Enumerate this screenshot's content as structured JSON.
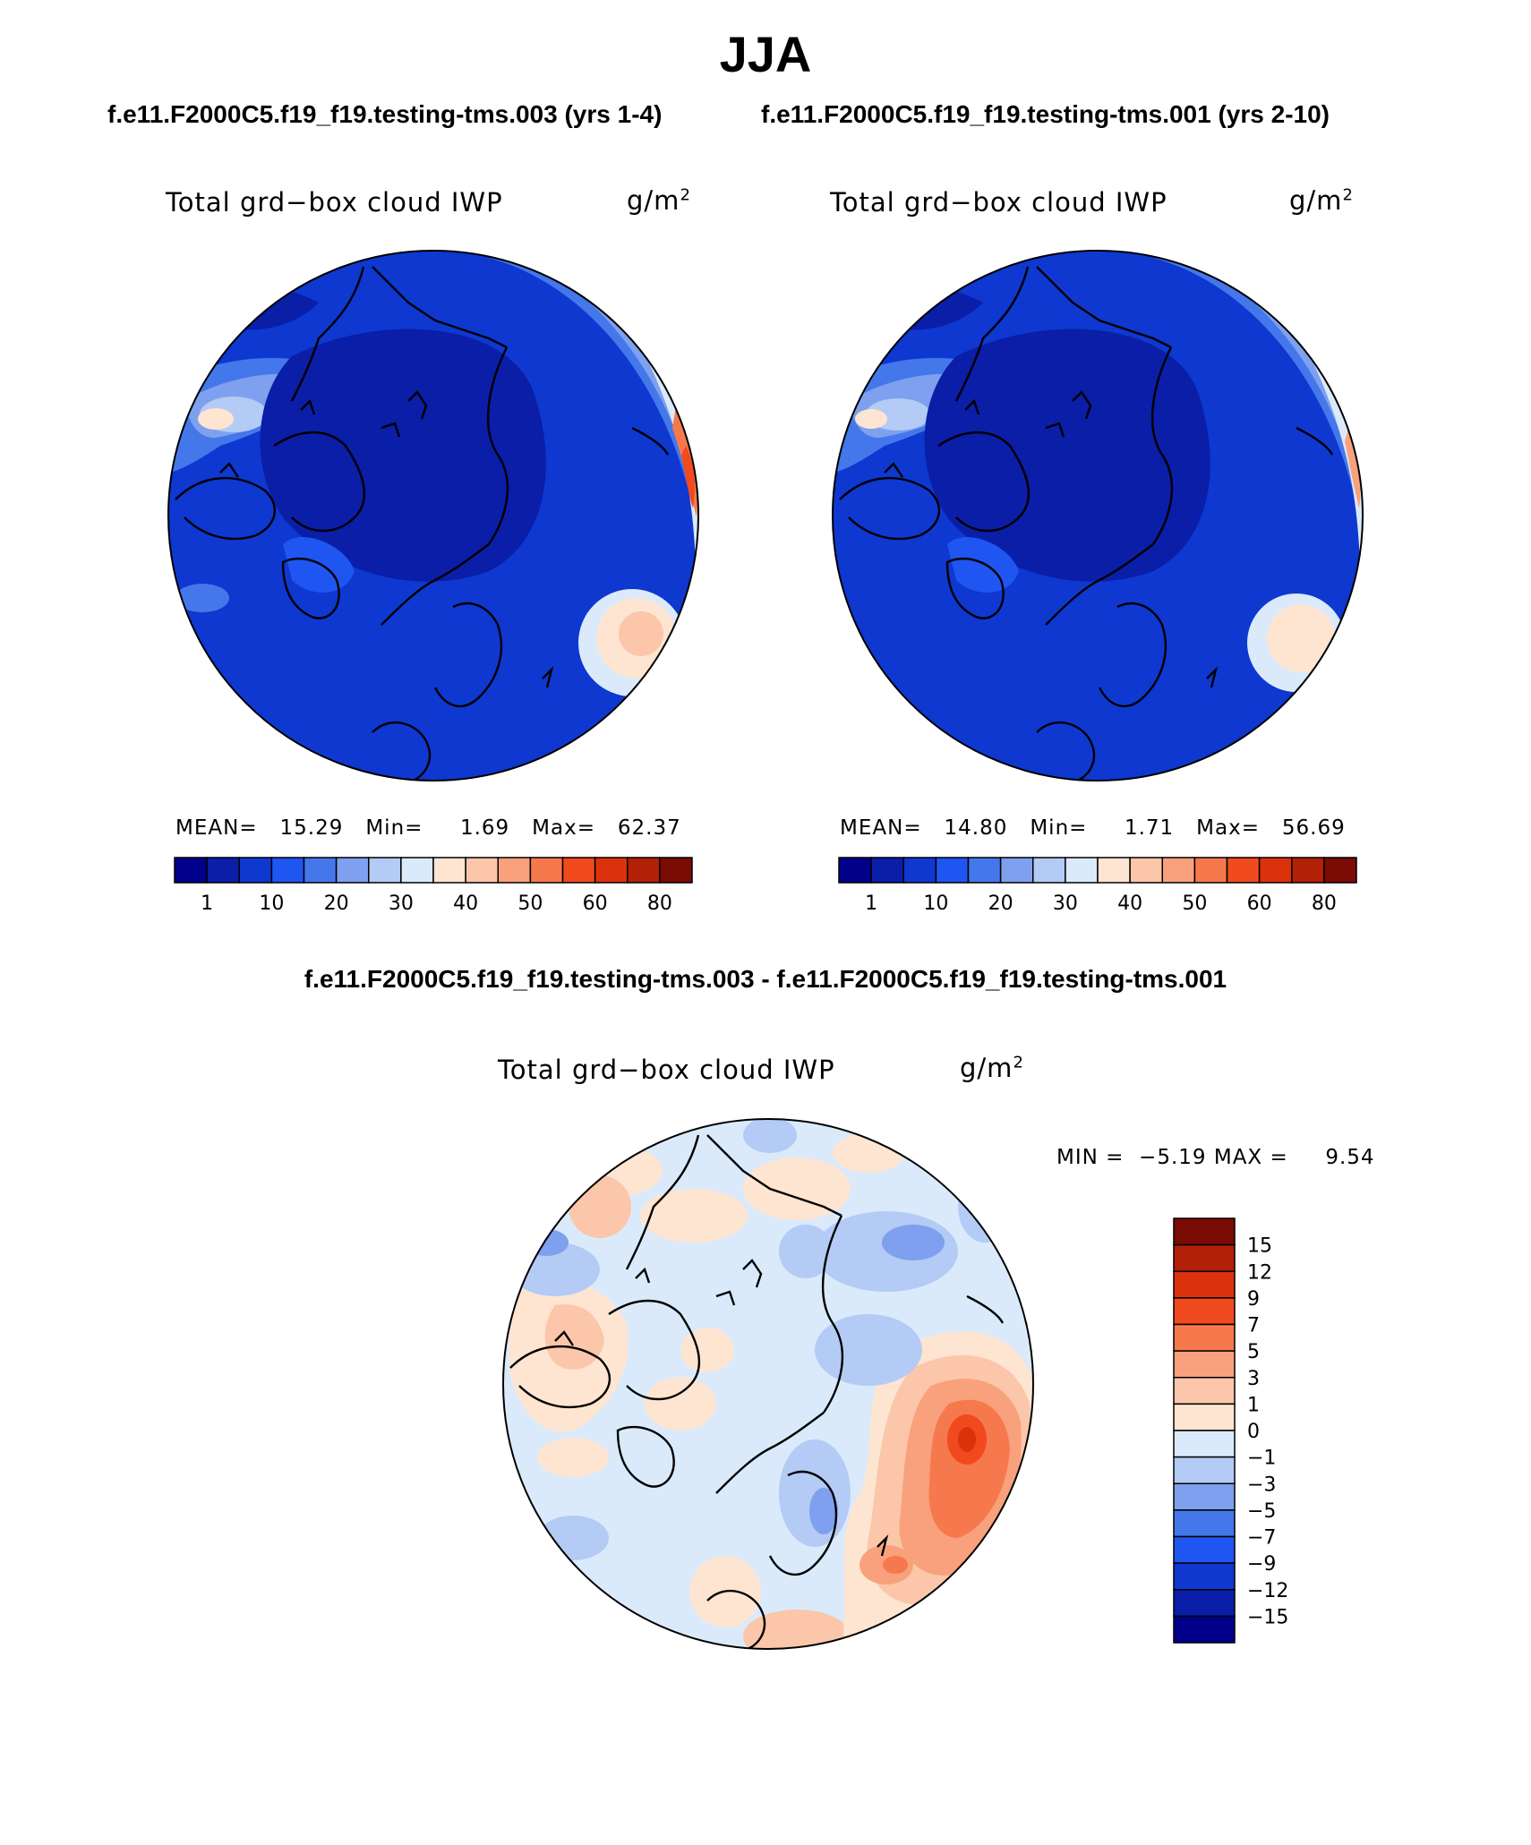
{
  "title": "JJA",
  "panels": [
    {
      "case_title": "f.e11.F2000C5.f19_f19.testing-tms.003 (yrs 1-4)",
      "variable": "Total grd−box cloud IWP",
      "units": "g/m",
      "units_exp": "2",
      "stats": {
        "mean_label": "MEAN=",
        "mean": "15.29",
        "min_label": "Min=",
        "min": "1.69",
        "max_label": "Max=",
        "max": "62.37"
      },
      "colorbar_labels": [
        "1",
        "10",
        "20",
        "30",
        "40",
        "50",
        "60",
        "80"
      ]
    },
    {
      "case_title": "f.e11.F2000C5.f19_f19.testing-tms.001 (yrs 2-10)",
      "variable": "Total grd−box cloud IWP",
      "units": "g/m",
      "units_exp": "2",
      "stats": {
        "mean_label": "MEAN=",
        "mean": "14.80",
        "min_label": "Min=",
        "min": "1.71",
        "max_label": "Max=",
        "max": "56.69"
      },
      "colorbar_labels": [
        "1",
        "10",
        "20",
        "30",
        "40",
        "50",
        "60",
        "80"
      ]
    }
  ],
  "difference": {
    "title": "f.e11.F2000C5.f19_f19.testing-tms.003 - f.e11.F2000C5.f19_f19.testing-tms.001",
    "variable": "Total grd−box cloud IWP",
    "units": "g/m",
    "units_exp": "2",
    "min_label": "MIN =",
    "min": "−5.19",
    "max_label": "MAX =",
    "max": "9.54",
    "colorbar_labels": [
      "15",
      "12",
      "9",
      "7",
      "5",
      "3",
      "1",
      "0",
      "−1",
      "−3",
      "−5",
      "−7",
      "−9",
      "−12",
      "−15"
    ]
  },
  "colors": {
    "abs_scale": [
      "#00008b",
      "#0a1ea8",
      "#0e38d0",
      "#1f55f0",
      "#4477ea",
      "#7ea0ee",
      "#b3cbf5",
      "#daeafb",
      "#fde5d2",
      "#fbc6a9",
      "#f9a17c",
      "#f6794d",
      "#f04a1e",
      "#dc320c",
      "#b22008",
      "#7a0b05"
    ],
    "diff_scale": [
      "#00008b",
      "#0a1ea8",
      "#0e38d0",
      "#1f55f0",
      "#4477ea",
      "#7ea0ee",
      "#b3cbf5",
      "#daeafb",
      "#fde5d2",
      "#fbc6a9",
      "#f9a17c",
      "#f6794d",
      "#f04a1e",
      "#dc320c",
      "#b22008",
      "#7a0b05"
    ]
  }
}
